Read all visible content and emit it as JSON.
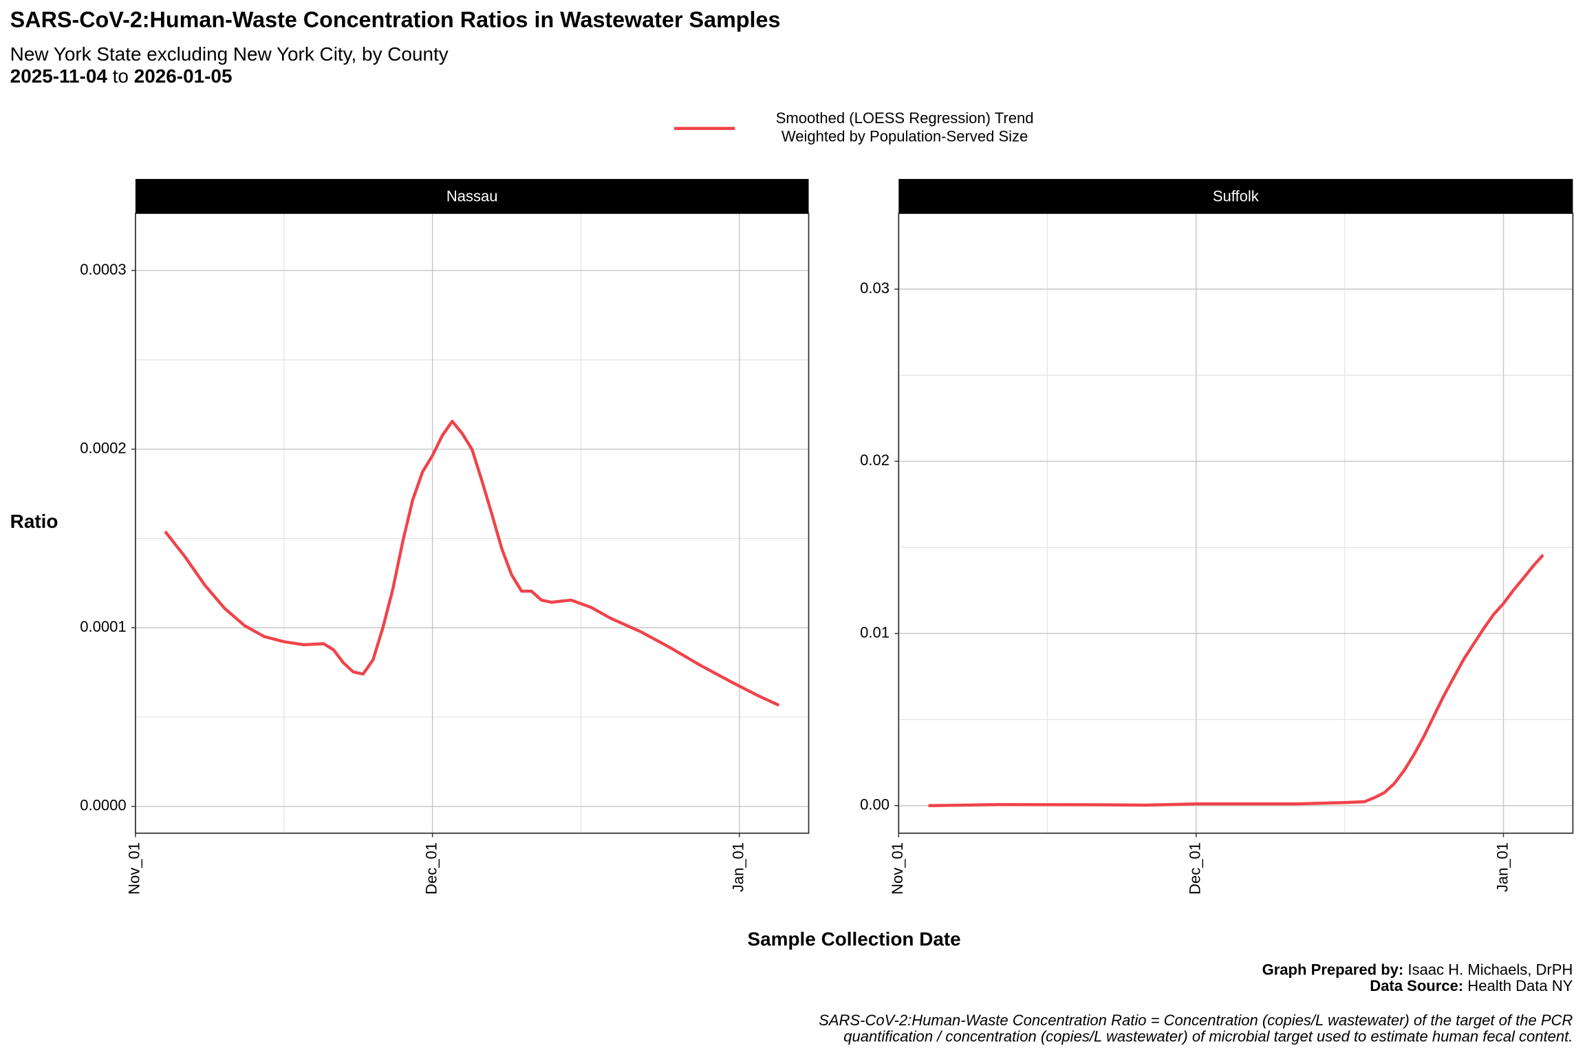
{
  "title": "SARS-CoV-2:Human-Waste Concentration Ratios in Wastewater Samples",
  "subtitle": "New York State excluding New York City, by County",
  "date_range": {
    "start": "2025-11-04",
    "connector": "to",
    "end": "2026-01-05"
  },
  "legend": {
    "lines": [
      "Smoothed (LOESS Regression) Trend",
      "Weighted by Population-Served Size"
    ],
    "color": "#f0434b"
  },
  "y_label": "Ratio",
  "x_label": "Sample Collection Date",
  "credits": [
    {
      "label": "Graph Prepared by:",
      "text": "Isaac H. Michaels, DrPH"
    },
    {
      "label": "Data Source:",
      "text": "Health Data NY"
    }
  ],
  "footnote": [
    "SARS-CoV-2:Human-Waste Concentration Ratio = Concentration (copies/L wastewater) of the target of the PCR",
    "quantification / concentration (copies/L wastewater) of microbial target used to estimate human fecal content."
  ],
  "chart_data": [
    {
      "type": "line",
      "title": "Nassau",
      "x": [
        "2025-11-04",
        "2025-11-06",
        "2025-11-08",
        "2025-11-10",
        "2025-11-12",
        "2025-11-14",
        "2025-11-16",
        "2025-11-18",
        "2025-11-20",
        "2025-11-21",
        "2025-11-22",
        "2025-11-23",
        "2025-11-24",
        "2025-11-25",
        "2025-11-26",
        "2025-11-27",
        "2025-11-28",
        "2025-11-29",
        "2025-11-30",
        "2025-12-01",
        "2025-12-02",
        "2025-12-03",
        "2025-12-04",
        "2025-12-05",
        "2025-12-06",
        "2025-12-07",
        "2025-12-08",
        "2025-12-09",
        "2025-12-10",
        "2025-12-11",
        "2025-12-12",
        "2025-12-13",
        "2025-12-15",
        "2025-12-17",
        "2025-12-19",
        "2025-12-22",
        "2025-12-25",
        "2025-12-28",
        "2025-12-31",
        "2026-01-03",
        "2026-01-05"
      ],
      "series": [
        {
          "color": "#f0434b",
          "values": [
            0.0001539,
            0.0001398,
            0.0001239,
            0.0001109,
            0.0001013,
            9.51e-05,
            9.22e-05,
            9.05e-05,
            9.11e-05,
            8.77e-05,
            8.04e-05,
            7.53e-05,
            7.41e-05,
            8.21e-05,
            0.0001002,
            0.0001217,
            0.0001483,
            0.0001715,
            0.0001873,
            0.0001964,
            0.0002077,
            0.0002156,
            0.0002088,
            0.0001998,
            0.0001822,
            0.0001636,
            0.0001443,
            0.0001296,
            0.0001205,
            0.0001205,
            0.0001155,
            0.0001143,
            0.0001155,
            0.0001115,
            0.0001053,
            9.79e-05,
            8.89e-05,
            7.92e-05,
            7.02e-05,
            6.17e-05,
            5.66e-05
          ]
        }
      ],
      "xlim": [
        "2025-11-01",
        "2026-01-08"
      ],
      "xticks": [
        {
          "value": "2025-11-01",
          "label": "Nov_01"
        },
        {
          "value": "2025-12-01",
          "label": "Dec_01"
        },
        {
          "value": "2026-01-01",
          "label": "Jan_01"
        }
      ],
      "minor_xticks": [
        "2025-11-16",
        "2025-12-16"
      ],
      "ylim": [
        -1.5e-05,
        0.000332
      ],
      "yticks": [
        {
          "value": 0,
          "label": "0.0000"
        },
        {
          "value": 0.0001,
          "label": "0.0001"
        },
        {
          "value": 0.0002,
          "label": "0.0002"
        },
        {
          "value": 0.0003,
          "label": "0.0003"
        }
      ],
      "minor_yticks": [
        5e-05,
        0.00015,
        0.00025
      ],
      "grid": true
    },
    {
      "type": "line",
      "title": "Suffolk",
      "x": [
        "2025-11-04",
        "2025-11-11",
        "2025-11-21",
        "2025-11-26",
        "2025-12-01",
        "2025-12-11",
        "2025-12-16",
        "2025-12-18",
        "2025-12-19",
        "2025-12-20",
        "2025-12-21",
        "2025-12-22",
        "2025-12-23",
        "2025-12-24",
        "2025-12-25",
        "2025-12-26",
        "2025-12-27",
        "2025-12-28",
        "2025-12-29",
        "2025-12-30",
        "2025-12-31",
        "2026-01-01",
        "2026-01-02",
        "2026-01-03",
        "2026-01-04",
        "2026-01-05"
      ],
      "series": [
        {
          "color": "#f0434b",
          "values": [
            0,
            6e-05,
            5e-05,
            3e-05,
            0.0001,
            0.0001,
            0.00018,
            0.00023,
            0.00047,
            0.00076,
            0.00129,
            0.00206,
            0.00299,
            0.00405,
            0.00523,
            0.0064,
            0.00746,
            0.00851,
            0.0094,
            0.01028,
            0.0111,
            0.01174,
            0.01251,
            0.01321,
            0.01392,
            0.01456
          ]
        }
      ],
      "xlim": [
        "2025-11-01",
        "2026-01-08"
      ],
      "xticks": [
        {
          "value": "2025-11-01",
          "label": "Nov_01"
        },
        {
          "value": "2025-12-01",
          "label": "Dec_01"
        },
        {
          "value": "2026-01-01",
          "label": "Jan_01"
        }
      ],
      "minor_xticks": [
        "2025-11-16",
        "2025-12-16"
      ],
      "ylim": [
        -0.0016,
        0.0344
      ],
      "yticks": [
        {
          "value": 0,
          "label": "0.00"
        },
        {
          "value": 0.01,
          "label": "0.01"
        },
        {
          "value": 0.02,
          "label": "0.02"
        },
        {
          "value": 0.03,
          "label": "0.03"
        }
      ],
      "minor_yticks": [
        0.005,
        0.015,
        0.025
      ],
      "grid": true
    }
  ]
}
